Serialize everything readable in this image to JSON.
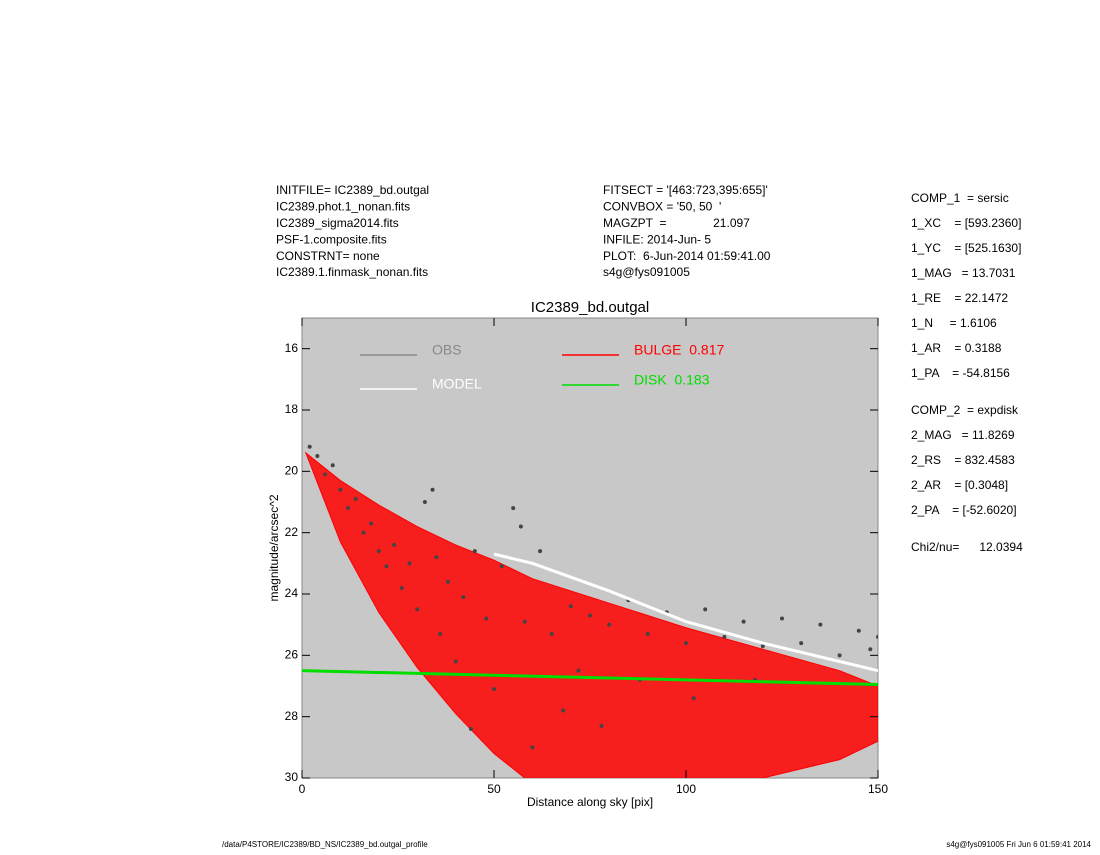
{
  "header_left": [
    "INITFILE= IC2389_bd.outgal",
    "IC2389.phot.1_nonan.fits",
    "IC2389_sigma2014.fits",
    "PSF-1.composite.fits",
    "CONSTRNT= none",
    "IC2389.1.finmask_nonan.fits"
  ],
  "header_mid": [
    "FITSECT = '[463:723,395:655]'",
    "CONVBOX = '50, 50  '",
    "MAGZPT  =              21.097",
    "INFILE: 2014-Jun- 5",
    "PLOT:  6-Jun-2014 01:59:41.00",
    "s4g@fys091005"
  ],
  "params": [
    [
      "COMP_1  = sersic",
      "1_XC    = [593.2360]",
      "1_YC    = [525.1630]",
      "1_MAG   = 13.7031",
      "1_RE    = 22.1472",
      "1_N     = 1.6106",
      "1_AR    = 0.3188",
      "1_PA    = -54.8156"
    ],
    [
      "COMP_2  = expdisk",
      "2_MAG   = 11.8269",
      "2_RS    = 832.4583",
      "2_AR    = [0.3048]",
      "2_PA    = [-52.6020]"
    ],
    [
      "Chi2/nu=      12.0394"
    ]
  ],
  "footer_left": "/data/P4STORE/IC2389/BD_NS/IC2389_bd.outgal_profile",
  "footer_right": "s4g@fys091005  Fri Jun  6 01:59:41 2014",
  "chart_data": {
    "type": "scatter",
    "title": "IC2389_bd.outgal",
    "x_label": "Distance along sky [pix]",
    "y_label": "magnitude/arcsec^2",
    "xlim": [
      0,
      150
    ],
    "xticks": [
      0,
      50,
      100,
      150
    ],
    "ylim": [
      15,
      30
    ],
    "yticks": [
      16,
      18,
      20,
      22,
      24,
      26,
      28,
      30
    ],
    "y_reversed": true,
    "background": "#c8c8c8",
    "series": [
      {
        "name": "OBS",
        "color": "#444444",
        "legend_color": "#888888",
        "kind": "points",
        "x": [
          2,
          4,
          6,
          8,
          10,
          12,
          14,
          16,
          18,
          20,
          22,
          24,
          26,
          28,
          30,
          32,
          34,
          35,
          36,
          38,
          40,
          42,
          44,
          45,
          48,
          50,
          52,
          55,
          57,
          58,
          60,
          62,
          65,
          68,
          70,
          72,
          75,
          78,
          80,
          85,
          88,
          90,
          95,
          100,
          102,
          105,
          110,
          115,
          118,
          120,
          125,
          130,
          135,
          140,
          145,
          148,
          150
        ],
        "values": [
          19.2,
          19.5,
          20.1,
          19.8,
          20.6,
          21.2,
          20.9,
          22.0,
          21.7,
          22.6,
          23.1,
          22.4,
          23.8,
          23.0,
          24.5,
          21.0,
          20.6,
          22.8,
          25.3,
          23.6,
          26.2,
          24.1,
          28.4,
          22.6,
          24.8,
          27.1,
          23.1,
          21.2,
          21.8,
          24.9,
          29.0,
          22.6,
          25.3,
          27.8,
          24.4,
          26.5,
          24.7,
          28.3,
          25.0,
          24.2,
          26.8,
          25.3,
          24.6,
          25.6,
          27.4,
          24.5,
          25.4,
          24.9,
          26.8,
          25.7,
          24.8,
          25.6,
          25.0,
          26.0,
          25.2,
          25.8,
          25.4
        ]
      },
      {
        "name": "MODEL",
        "color": "#ffffff",
        "legend_color": "#ffffff",
        "kind": "line",
        "x": [
          50,
          60,
          80,
          100,
          120,
          150
        ],
        "values": [
          22.7,
          23.0,
          23.9,
          24.9,
          25.6,
          26.5
        ]
      },
      {
        "name": "BULGE  0.817",
        "color": "#ff0000",
        "legend_color": "#ff0000",
        "kind": "band",
        "x": [
          1,
          10,
          20,
          30,
          40,
          50,
          60,
          80,
          100,
          120,
          140,
          150
        ],
        "values": [
          19.4,
          20.3,
          21.1,
          21.8,
          22.4,
          22.9,
          23.5,
          24.3,
          25.1,
          25.8,
          26.5,
          27.0
        ],
        "lower": [
          19.4,
          22.3,
          24.6,
          26.4,
          27.9,
          29.2,
          30.2,
          30.6,
          30.4,
          30.0,
          29.4,
          28.8
        ]
      },
      {
        "name": "DISK  0.183",
        "color": "#00dd00",
        "legend_color": "#00dd00",
        "kind": "line",
        "x": [
          0,
          150
        ],
        "values": [
          26.5,
          26.95
        ]
      }
    ]
  }
}
